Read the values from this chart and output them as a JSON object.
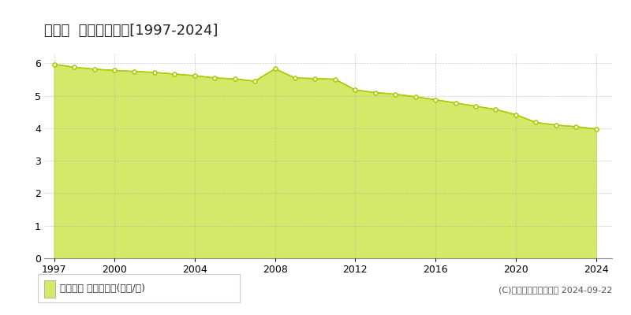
{
  "title": "太良町  基準地価推移[1997-2024]",
  "years": [
    1997,
    1998,
    1999,
    2000,
    2001,
    2002,
    2003,
    2004,
    2005,
    2006,
    2007,
    2008,
    2009,
    2010,
    2011,
    2012,
    2013,
    2014,
    2015,
    2016,
    2017,
    2018,
    2019,
    2020,
    2021,
    2022,
    2023,
    2024
  ],
  "values": [
    5.97,
    5.88,
    5.82,
    5.78,
    5.75,
    5.72,
    5.67,
    5.62,
    5.55,
    5.52,
    5.45,
    5.83,
    5.55,
    5.53,
    5.51,
    5.18,
    5.1,
    5.05,
    4.97,
    4.88,
    4.78,
    4.68,
    4.58,
    4.42,
    4.18,
    4.1,
    4.05,
    3.98
  ],
  "fill_color": "#d4e96a",
  "line_color": "#aacc00",
  "marker_color": "#ffffff",
  "marker_edge_color": "#aacc00",
  "background_color": "#ffffff",
  "plot_bg_color": "#f5f5f5",
  "grid_color": "#aaaaaa",
  "ylim": [
    0,
    6.3
  ],
  "yticks": [
    0,
    1,
    2,
    3,
    4,
    5,
    6
  ],
  "xticks": [
    1997,
    2000,
    2004,
    2008,
    2012,
    2016,
    2020,
    2024
  ],
  "legend_label": "基準地価 平均坪単価(万円/坪)",
  "copyright_text": "(C)土地価格ドットコム 2024-09-22",
  "title_fontsize": 13,
  "axis_fontsize": 9,
  "legend_fontsize": 9
}
